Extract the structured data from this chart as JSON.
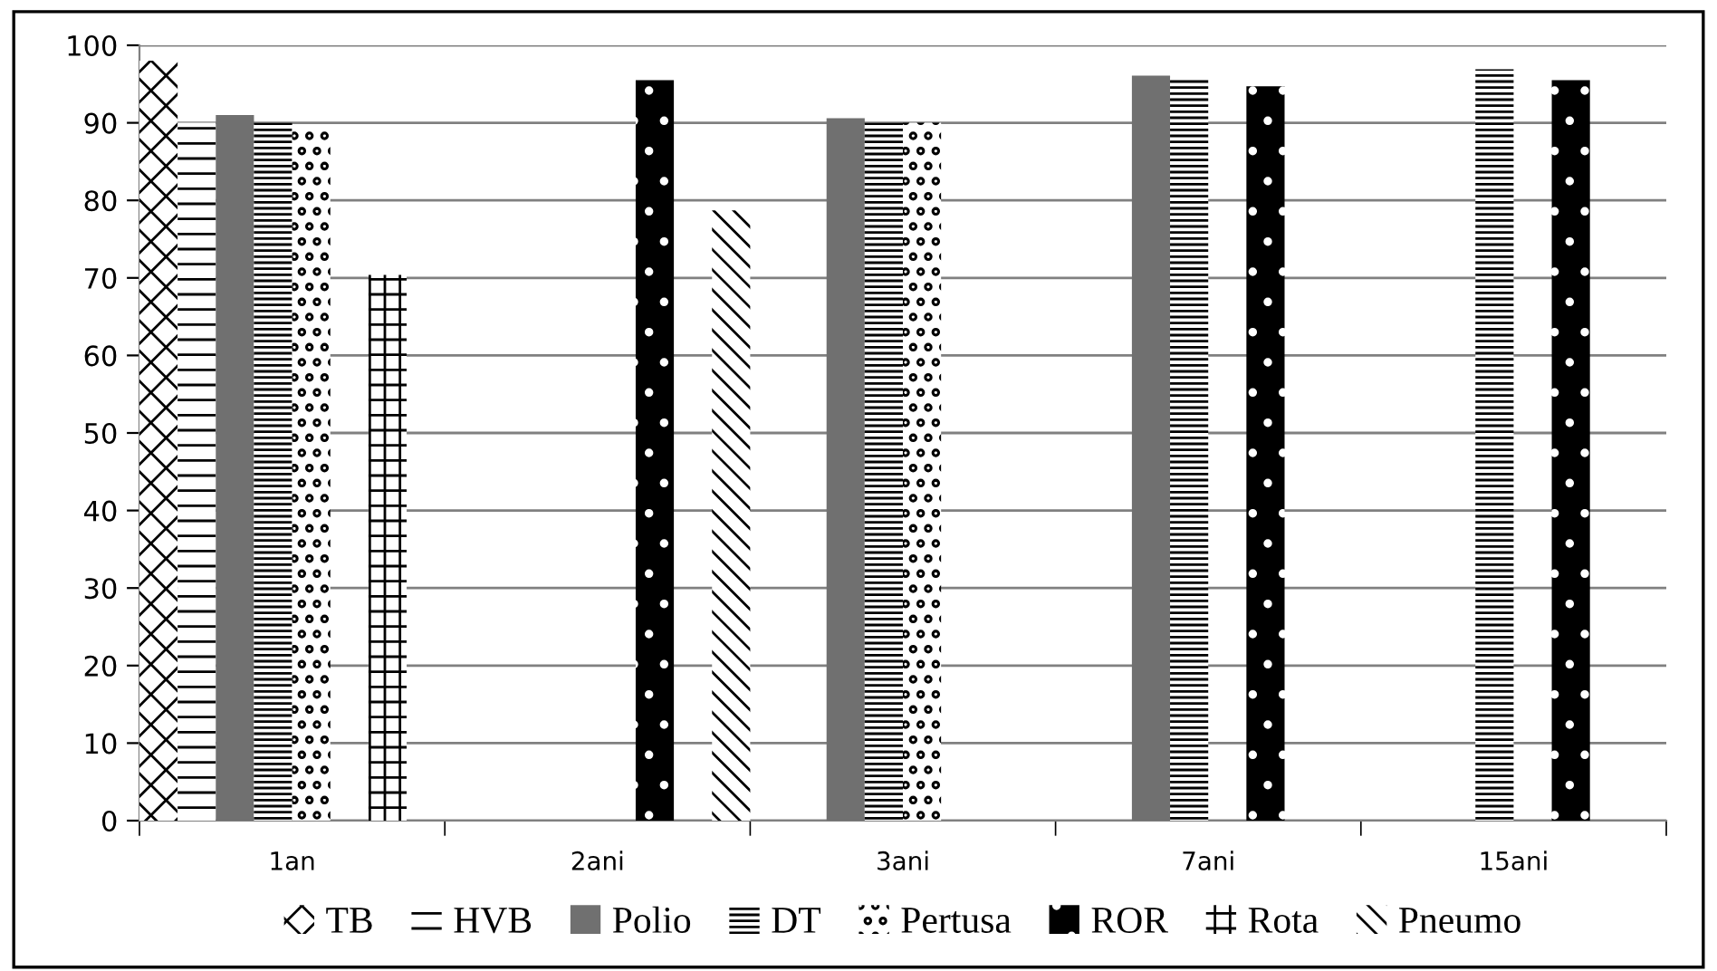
{
  "chart_data": {
    "type": "bar",
    "categories": [
      "1an",
      "2ani",
      "3ani",
      "7ani",
      "15ani"
    ],
    "series": [
      {
        "name": "TB",
        "color": "#000000",
        "values": [
          98,
          null,
          null,
          null,
          null
        ]
      },
      {
        "name": "HVB",
        "color": "#000000",
        "values": [
          90,
          null,
          null,
          null,
          null
        ]
      },
      {
        "name": "Polio",
        "color": "#707070",
        "values": [
          91,
          null,
          90.6,
          96.1,
          null
        ]
      },
      {
        "name": "DT",
        "color": "#000000",
        "values": [
          90,
          null,
          90,
          95.7,
          96.9
        ]
      },
      {
        "name": "Pertusa",
        "color": "#000000",
        "values": [
          89.5,
          null,
          90,
          null,
          null
        ]
      },
      {
        "name": "ROR",
        "color": "#000000",
        "values": [
          null,
          95.5,
          null,
          94.7,
          95.5
        ]
      },
      {
        "name": "Rota",
        "color": "#000000",
        "values": [
          70.4,
          null,
          null,
          null,
          null
        ]
      },
      {
        "name": "Pneumo",
        "color": "#000000",
        "values": [
          null,
          78.7,
          null,
          null,
          null
        ]
      }
    ],
    "ylim": [
      0,
      100
    ],
    "yticks": [
      0,
      10,
      20,
      30,
      40,
      50,
      60,
      70,
      80,
      90,
      100
    ],
    "grid": "y",
    "legend": "bottom"
  }
}
